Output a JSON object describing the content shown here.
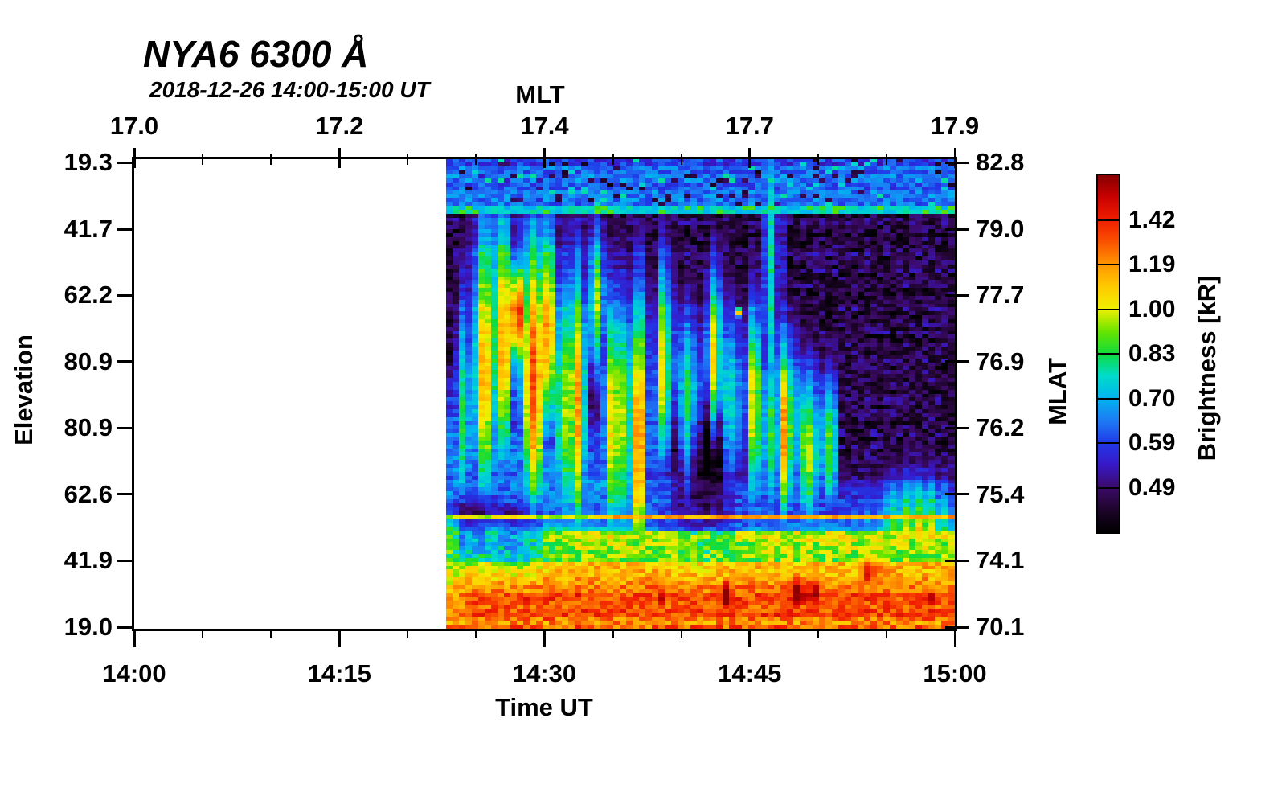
{
  "title": "NYA6 6300 Å",
  "subtitle": "2018-12-26 14:00-15:00 UT",
  "axes": {
    "top": {
      "label": "MLT",
      "tick_labels": [
        "17.0",
        "17.2",
        "17.4",
        "17.7",
        "17.9"
      ],
      "major_fracs": [
        0,
        0.25,
        0.5,
        0.75,
        1
      ],
      "minor_fracs": [
        0.0833,
        0.1667,
        0.3333,
        0.4167,
        0.5833,
        0.6667,
        0.8333,
        0.9167
      ]
    },
    "bottom": {
      "label": "Time UT",
      "tick_labels": [
        "14:00",
        "14:15",
        "14:30",
        "14:45",
        "15:00"
      ],
      "major_fracs": [
        0,
        0.25,
        0.5,
        0.75,
        1
      ],
      "minor_fracs": [
        0.0833,
        0.1667,
        0.3333,
        0.4167,
        0.5833,
        0.6667,
        0.8333,
        0.9167
      ]
    },
    "left": {
      "label": "Elevation",
      "tick_labels": [
        "19.3",
        "41.7",
        "62.2",
        "80.9",
        "80.9",
        "62.6",
        "41.9",
        "19.0"
      ],
      "major_fracs": [
        0.0077,
        0.149,
        0.2902,
        0.4315,
        0.5727,
        0.714,
        0.8553,
        0.9966
      ]
    },
    "right": {
      "label": "MLAT",
      "tick_labels": [
        "82.8",
        "79.0",
        "77.7",
        "76.9",
        "76.2",
        "75.4",
        "74.1",
        "70.1"
      ],
      "major_fracs": [
        0.0077,
        0.149,
        0.2902,
        0.4315,
        0.5727,
        0.714,
        0.8553,
        0.9966
      ]
    }
  },
  "colorbar": {
    "label": "Brightness [kR]",
    "tick_labels": [
      "1.42",
      "1.19",
      "1.00",
      "0.83",
      "0.70",
      "0.59",
      "0.49"
    ],
    "tick_fracs_from_top": [
      0.125,
      0.25,
      0.375,
      0.5,
      0.625,
      0.75,
      0.875
    ]
  },
  "chart_data": {
    "type": "heatmap",
    "title": "NYA6 6300 Å",
    "subtitle": "2018-12-26 14:00-15:00 UT",
    "xlabel": "Time UT",
    "x_major_ticks": [
      "14:00",
      "14:15",
      "14:30",
      "14:45",
      "15:00"
    ],
    "top_axis_label": "MLT",
    "top_axis_ticks": [
      17.0,
      17.2,
      17.4,
      17.7,
      17.9
    ],
    "y_left_label": "Elevation",
    "y_left_ticks": [
      19.3,
      41.7,
      62.2,
      80.9,
      80.9,
      62.6,
      41.9,
      19.0
    ],
    "y_right_label": "MLAT",
    "y_right_ticks": [
      82.8,
      79.0,
      77.7,
      76.9,
      76.2,
      75.4,
      74.1,
      70.1
    ],
    "colorbar_label": "Brightness [kR]",
    "colorbar_ticks": [
      1.42,
      1.19,
      1.0,
      0.83,
      0.7,
      0.59,
      0.49
    ],
    "colormap_stops": [
      [
        0.0,
        "#000000"
      ],
      [
        0.06,
        "#1c0428"
      ],
      [
        0.125,
        "#3c0a68"
      ],
      [
        0.19,
        "#3818c8"
      ],
      [
        0.25,
        "#2038e8"
      ],
      [
        0.31,
        "#1e78f5"
      ],
      [
        0.375,
        "#00b4f0"
      ],
      [
        0.44,
        "#00dcc8"
      ],
      [
        0.5,
        "#10dc3c"
      ],
      [
        0.56,
        "#64e400"
      ],
      [
        0.625,
        "#f0f000"
      ],
      [
        0.69,
        "#ffc800"
      ],
      [
        0.75,
        "#ff9600"
      ],
      [
        0.815,
        "#fa5000"
      ],
      [
        0.875,
        "#f01e00"
      ],
      [
        0.94,
        "#c80000"
      ],
      [
        1.0,
        "#880000"
      ]
    ],
    "data_start_frac": 0.38,
    "data_start_time": "14:23",
    "grid": {
      "cols": 79,
      "rows": 120
    },
    "seed": 1337,
    "bands": {
      "top_blue_band_rows": 12,
      "cyan_line_rows": [
        12,
        13
      ],
      "red_artifact_line_v": 0.762,
      "blue_boundary": [
        0.4,
        0.26
      ],
      "green_boundary": [
        0.74,
        0.1
      ],
      "bottom_green_v": 0.795,
      "bottom_red_v": 0.86
    },
    "features": [
      {
        "cu": 0.025,
        "cv": 0.55,
        "su": 0.016,
        "sv": 0.22,
        "amp": 0.62
      },
      {
        "cu": 0.07,
        "cv": 0.44,
        "su": 0.018,
        "sv": 0.26,
        "amp": 0.7
      },
      {
        "cu": 0.11,
        "cv": 0.38,
        "su": 0.02,
        "sv": 0.22,
        "amp": 0.76
      },
      {
        "cu": 0.135,
        "cv": 0.33,
        "su": 0.012,
        "sv": 0.09,
        "amp": 0.9
      },
      {
        "cu": 0.165,
        "cv": 0.46,
        "su": 0.02,
        "sv": 0.26,
        "amp": 0.74
      },
      {
        "cu": 0.205,
        "cv": 0.36,
        "su": 0.018,
        "sv": 0.18,
        "amp": 0.72
      },
      {
        "cu": 0.245,
        "cv": 0.52,
        "su": 0.02,
        "sv": 0.24,
        "amp": 0.66
      },
      {
        "cu": 0.29,
        "cv": 0.3,
        "su": 0.013,
        "sv": 0.13,
        "amp": 0.6
      },
      {
        "cu": 0.33,
        "cv": 0.56,
        "su": 0.02,
        "sv": 0.22,
        "amp": 0.64
      },
      {
        "cu": 0.375,
        "cv": 0.6,
        "su": 0.022,
        "sv": 0.26,
        "amp": 0.74
      },
      {
        "cu": 0.43,
        "cv": 0.46,
        "su": 0.018,
        "sv": 0.2,
        "amp": 0.62
      },
      {
        "cu": 0.47,
        "cv": 0.56,
        "su": 0.015,
        "sv": 0.18,
        "amp": 0.56
      },
      {
        "cu": 0.52,
        "cv": 0.43,
        "su": 0.016,
        "sv": 0.16,
        "amp": 0.64
      },
      {
        "cu": 0.565,
        "cv": 0.55,
        "su": 0.014,
        "sv": 0.18,
        "amp": 0.6
      },
      {
        "cu": 0.615,
        "cv": 0.53,
        "su": 0.02,
        "sv": 0.18,
        "amp": 0.72
      },
      {
        "cu": 0.66,
        "cv": 0.58,
        "su": 0.018,
        "sv": 0.16,
        "amp": 0.68
      },
      {
        "cu": 0.705,
        "cv": 0.62,
        "su": 0.02,
        "sv": 0.14,
        "amp": 0.64
      },
      {
        "cu": 0.75,
        "cv": 0.61,
        "su": 0.014,
        "sv": 0.12,
        "amp": 0.58
      },
      {
        "cu": 0.93,
        "cv": 0.8,
        "su": 0.09,
        "sv": 0.09,
        "amp": 0.6
      },
      {
        "cu": 0.648,
        "cv": 0.25,
        "su": 0.006,
        "sv": 0.33,
        "amp": 0.47
      },
      {
        "cu": 0.577,
        "cv": 0.327,
        "su": 0.004,
        "sv": 0.008,
        "amp": 0.8
      },
      {
        "cu": 0.14,
        "cv": 0.945,
        "su": 0.03,
        "sv": 0.032,
        "amp": 0.93
      },
      {
        "cu": 0.27,
        "cv": 0.93,
        "su": 0.035,
        "sv": 0.04,
        "amp": 0.95
      },
      {
        "cu": 0.42,
        "cv": 0.94,
        "su": 0.03,
        "sv": 0.045,
        "amp": 0.94
      },
      {
        "cu": 0.55,
        "cv": 0.935,
        "su": 0.04,
        "sv": 0.05,
        "amp": 0.96
      },
      {
        "cu": 0.7,
        "cv": 0.93,
        "su": 0.05,
        "sv": 0.055,
        "amp": 0.97
      },
      {
        "cu": 0.8,
        "cv": 0.95,
        "su": 0.03,
        "sv": 0.03,
        "amp": 0.93
      },
      {
        "cu": 0.845,
        "cv": 0.885,
        "su": 0.035,
        "sv": 0.05,
        "amp": 0.9
      },
      {
        "cu": 0.955,
        "cv": 0.94,
        "su": 0.028,
        "sv": 0.035,
        "amp": 0.94
      },
      {
        "cu": 0.5,
        "cv": 0.66,
        "su": 0.05,
        "sv": 0.1,
        "amp": -0.26
      },
      {
        "cu": 0.04,
        "cv": 0.79,
        "su": 0.03,
        "sv": 0.05,
        "amp": -0.26
      },
      {
        "cu": 0.13,
        "cv": 0.81,
        "su": 0.04,
        "sv": 0.05,
        "amp": -0.24
      }
    ]
  }
}
